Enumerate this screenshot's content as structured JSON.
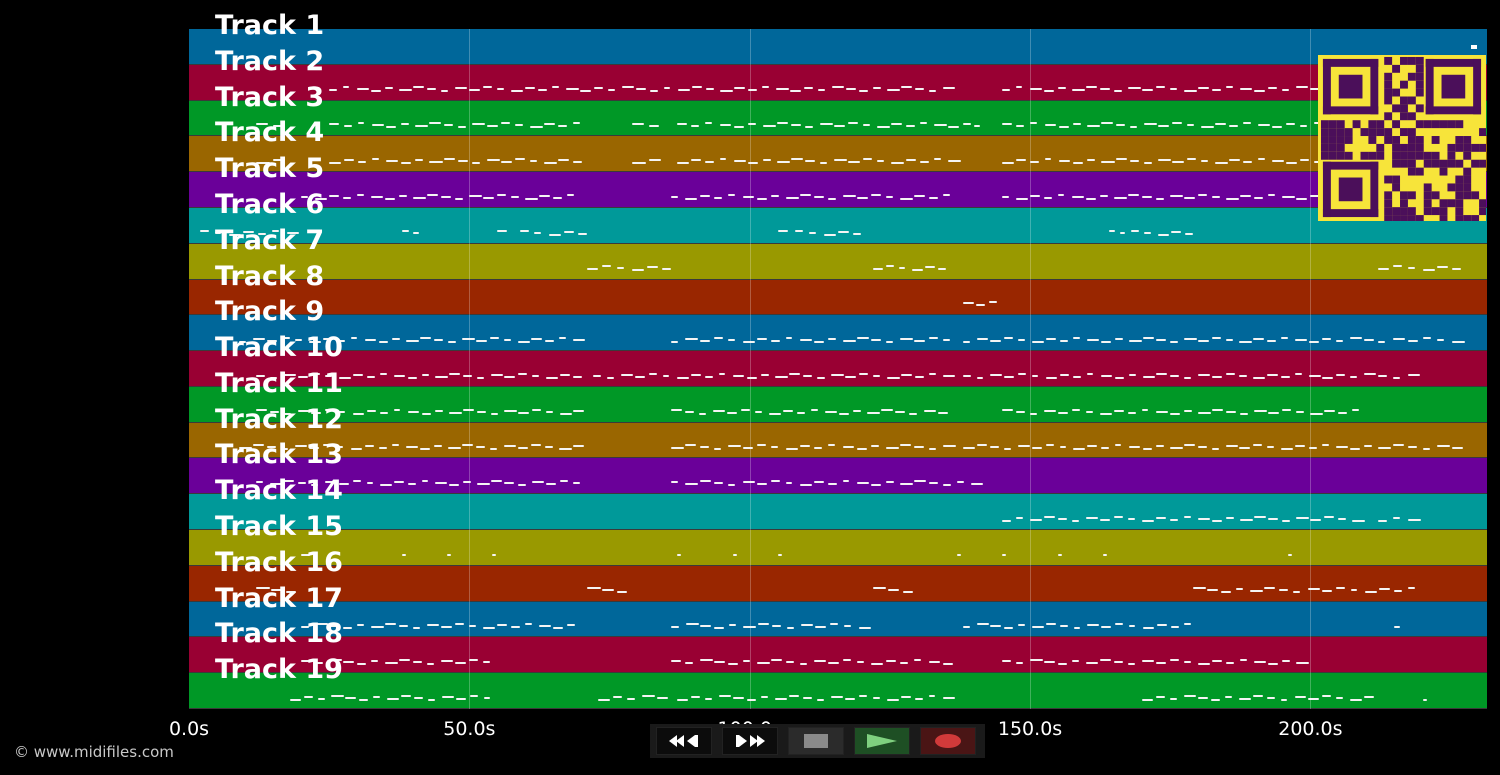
{
  "app": {
    "copyright": "© www.midifiles.com",
    "colors": {
      "background": "#000000",
      "lane_palette": [
        "#00679a",
        "#990033",
        "#009826",
        "#9a6600",
        "#6a0099",
        "#009999",
        "#999900",
        "#992600"
      ],
      "note": "#f4f4f4",
      "qr_background": "#f7e43a",
      "qr_modules": "#4b0f5a"
    }
  },
  "timeline": {
    "duration_seconds": 231.5,
    "ticks": [
      "0.0s",
      "50.0s",
      "100.0s",
      "150.0s",
      "200.0s"
    ],
    "tick_values": [
      0,
      50,
      100,
      150,
      200
    ]
  },
  "tracks": [
    {
      "label": "Track 1",
      "color": "#00679a",
      "notes": []
    },
    {
      "label": "Track 2",
      "color": "#990033",
      "notes": [
        [
          25,
          137
        ],
        [
          145,
          215
        ]
      ]
    },
    {
      "label": "Track 3",
      "color": "#009826",
      "notes": [
        [
          12,
          18
        ],
        [
          25,
          71
        ],
        [
          79,
          85
        ],
        [
          87,
          138
        ],
        [
          138,
          142
        ],
        [
          145,
          221
        ]
      ]
    },
    {
      "label": "Track 4",
      "color": "#9a6600",
      "notes": [
        [
          12,
          18
        ],
        [
          25,
          71
        ],
        [
          79,
          85
        ],
        [
          87,
          138
        ],
        [
          145,
          221
        ]
      ]
    },
    {
      "label": "Track 5",
      "color": "#6a0099",
      "notes": [
        [
          20,
          70
        ],
        [
          86,
          137
        ],
        [
          145,
          210
        ]
      ]
    },
    {
      "label": "Track 6",
      "color": "#009999",
      "notes": [
        [
          2,
          20
        ],
        [
          38,
          42
        ],
        [
          55,
          58
        ],
        [
          59,
          72
        ],
        [
          105,
          108
        ],
        [
          108,
          121
        ],
        [
          164,
          168
        ],
        [
          168,
          180
        ]
      ]
    },
    {
      "label": "Track 7",
      "color": "#999900",
      "notes": [
        [
          71,
          87
        ],
        [
          122,
          136
        ],
        [
          212,
          228
        ]
      ]
    },
    {
      "label": "Track 8",
      "color": "#992600",
      "notes": [
        [
          138,
          145
        ]
      ]
    },
    {
      "label": "Track 9",
      "color": "#00679a",
      "notes": [
        [
          9,
          71
        ],
        [
          86,
          137
        ],
        [
          138,
          212
        ],
        [
          212,
          228
        ]
      ]
    },
    {
      "label": "Track 10",
      "color": "#990033",
      "notes": [
        [
          12,
          71
        ],
        [
          72,
          137
        ],
        [
          138,
          212
        ],
        [
          212,
          220
        ]
      ]
    },
    {
      "label": "Track 11",
      "color": "#009826",
      "notes": [
        [
          12,
          71
        ],
        [
          86,
          136
        ],
        [
          145,
          210
        ]
      ]
    },
    {
      "label": "Track 12",
      "color": "#9a6600",
      "notes": [
        [
          9,
          71
        ],
        [
          86,
          137
        ],
        [
          138,
          212
        ],
        [
          212,
          228
        ]
      ]
    },
    {
      "label": "Track 13",
      "color": "#6a0099",
      "notes": [
        [
          12,
          71
        ],
        [
          86,
          137
        ],
        [
          137,
          142
        ]
      ]
    },
    {
      "label": "Track 14",
      "color": "#009999",
      "notes": [
        [
          145,
          210
        ],
        [
          212,
          220
        ]
      ]
    },
    {
      "label": "Track 15",
      "color": "#999900",
      "notes": [
        [
          20,
          22
        ],
        [
          38,
          39
        ],
        [
          46,
          47
        ],
        [
          54,
          55
        ],
        [
          87,
          88
        ],
        [
          97,
          98
        ],
        [
          105,
          106
        ],
        [
          137,
          138
        ],
        [
          145,
          146
        ],
        [
          155,
          156
        ],
        [
          163,
          164
        ],
        [
          196,
          197
        ]
      ]
    },
    {
      "label": "Track 16",
      "color": "#992600",
      "notes": [
        [
          12,
          20
        ],
        [
          71,
          79
        ],
        [
          122,
          130
        ],
        [
          179,
          220
        ]
      ]
    },
    {
      "label": "Track 17",
      "color": "#00679a",
      "notes": [
        [
          20,
          70
        ],
        [
          86,
          122
        ],
        [
          138,
          180
        ],
        [
          215,
          217
        ]
      ]
    },
    {
      "label": "Track 18",
      "color": "#990033",
      "notes": [
        [
          20,
          55
        ],
        [
          86,
          137
        ],
        [
          145,
          200
        ]
      ]
    },
    {
      "label": "Track 19",
      "color": "#009826",
      "notes": [
        [
          18,
          55
        ],
        [
          73,
          86
        ],
        [
          87,
          137
        ],
        [
          170,
          212
        ],
        [
          220,
          221
        ]
      ]
    }
  ],
  "controls": {
    "rewind": "rewind-icon",
    "forward": "fast-forward-icon",
    "stop": "stop-icon",
    "play": "play-icon",
    "record": "record-icon"
  }
}
